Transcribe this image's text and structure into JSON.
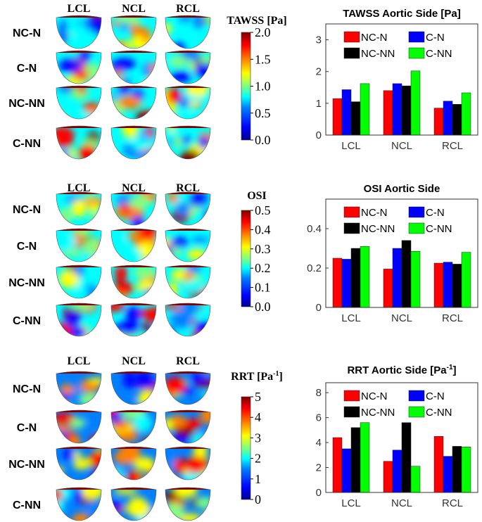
{
  "colors": {
    "nc_n": "#ff0000",
    "c_n": "#0000ff",
    "nc_nn": "#000000",
    "c_nn": "#00ff00",
    "jet": [
      "#00008f",
      "#0000ff",
      "#0080ff",
      "#00ffff",
      "#80ff80",
      "#ffff00",
      "#ff8000",
      "#ff0000",
      "#800000"
    ]
  },
  "panels": [
    {
      "id": "tawss",
      "columns": [
        "LCL",
        "NCL",
        "RCL"
      ],
      "rows": [
        "NC-N",
        "C-N",
        "NC-NN",
        "C-NN"
      ],
      "colorbar": {
        "title": "TAWSS [Pa]",
        "ticks": [
          "2.0",
          "1.5",
          "1.0",
          "0.5",
          "0.0"
        ]
      }
    },
    {
      "id": "osi",
      "columns": [
        "LCL",
        "NCL",
        "RCL"
      ],
      "rows": [
        "NC-N",
        "C-N",
        "NC-NN",
        "C-NN"
      ],
      "colorbar": {
        "title": "OSI",
        "ticks": [
          "0.5",
          "0.4",
          "0.3",
          "0.2",
          "0.1",
          "0.0"
        ]
      }
    },
    {
      "id": "rrt",
      "columns": [
        "LCL",
        "NCL",
        "RCL"
      ],
      "rows": [
        "NC-N",
        "C-N",
        "NC-NN",
        "C-NN"
      ],
      "colorbar": {
        "title": "RRT [Pa",
        "title_sup": "-1",
        "title_end": "]",
        "ticks": [
          "5",
          "4",
          "3",
          "2",
          "1",
          "0"
        ]
      }
    }
  ],
  "chart_data": [
    {
      "type": "bar",
      "title": "TAWSS Aortic Side [Pa]",
      "categories": [
        "LCL",
        "NCL",
        "RCL"
      ],
      "ylim": [
        0,
        3.5
      ],
      "yticks": [
        "0",
        "1",
        "2",
        "3"
      ],
      "ytick_values": [
        0,
        1,
        2,
        3
      ],
      "series": [
        {
          "name": "NC-N",
          "values": [
            1.15,
            1.4,
            0.85
          ]
        },
        {
          "name": "C-N",
          "values": [
            1.43,
            1.62,
            1.07
          ]
        },
        {
          "name": "NC-NN",
          "values": [
            1.05,
            1.55,
            0.97
          ]
        },
        {
          "name": "C-NN",
          "values": [
            1.62,
            2.02,
            1.33
          ]
        }
      ]
    },
    {
      "type": "bar",
      "title": "OSI Aortic Side",
      "categories": [
        "LCL",
        "NCL",
        "RCL"
      ],
      "ylim": [
        0,
        0.55
      ],
      "yticks": [
        "0",
        "0.2",
        "0.4"
      ],
      "ytick_values": [
        0,
        0.2,
        0.4
      ],
      "series": [
        {
          "name": "NC-N",
          "values": [
            0.25,
            0.195,
            0.225
          ]
        },
        {
          "name": "C-N",
          "values": [
            0.245,
            0.3,
            0.23
          ]
        },
        {
          "name": "NC-NN",
          "values": [
            0.3,
            0.34,
            0.22
          ]
        },
        {
          "name": "C-NN",
          "values": [
            0.31,
            0.285,
            0.28
          ]
        }
      ]
    },
    {
      "type": "bar",
      "title": "RRT Aortic Side [Pa",
      "title_sup": "-1",
      "title_end": "]",
      "categories": [
        "LCL",
        "NCL",
        "RCL"
      ],
      "ylim": [
        0,
        8.8
      ],
      "yticks": [
        "0",
        "2",
        "4",
        "6",
        "8"
      ],
      "ytick_values": [
        0,
        2,
        4,
        6,
        8
      ],
      "series": [
        {
          "name": "NC-N",
          "values": [
            4.4,
            2.5,
            4.5
          ]
        },
        {
          "name": "C-N",
          "values": [
            3.5,
            3.4,
            2.9
          ]
        },
        {
          "name": "NC-NN",
          "values": [
            5.2,
            5.6,
            3.7
          ]
        },
        {
          "name": "C-NN",
          "values": [
            5.6,
            2.1,
            3.65
          ]
        }
      ]
    }
  ]
}
